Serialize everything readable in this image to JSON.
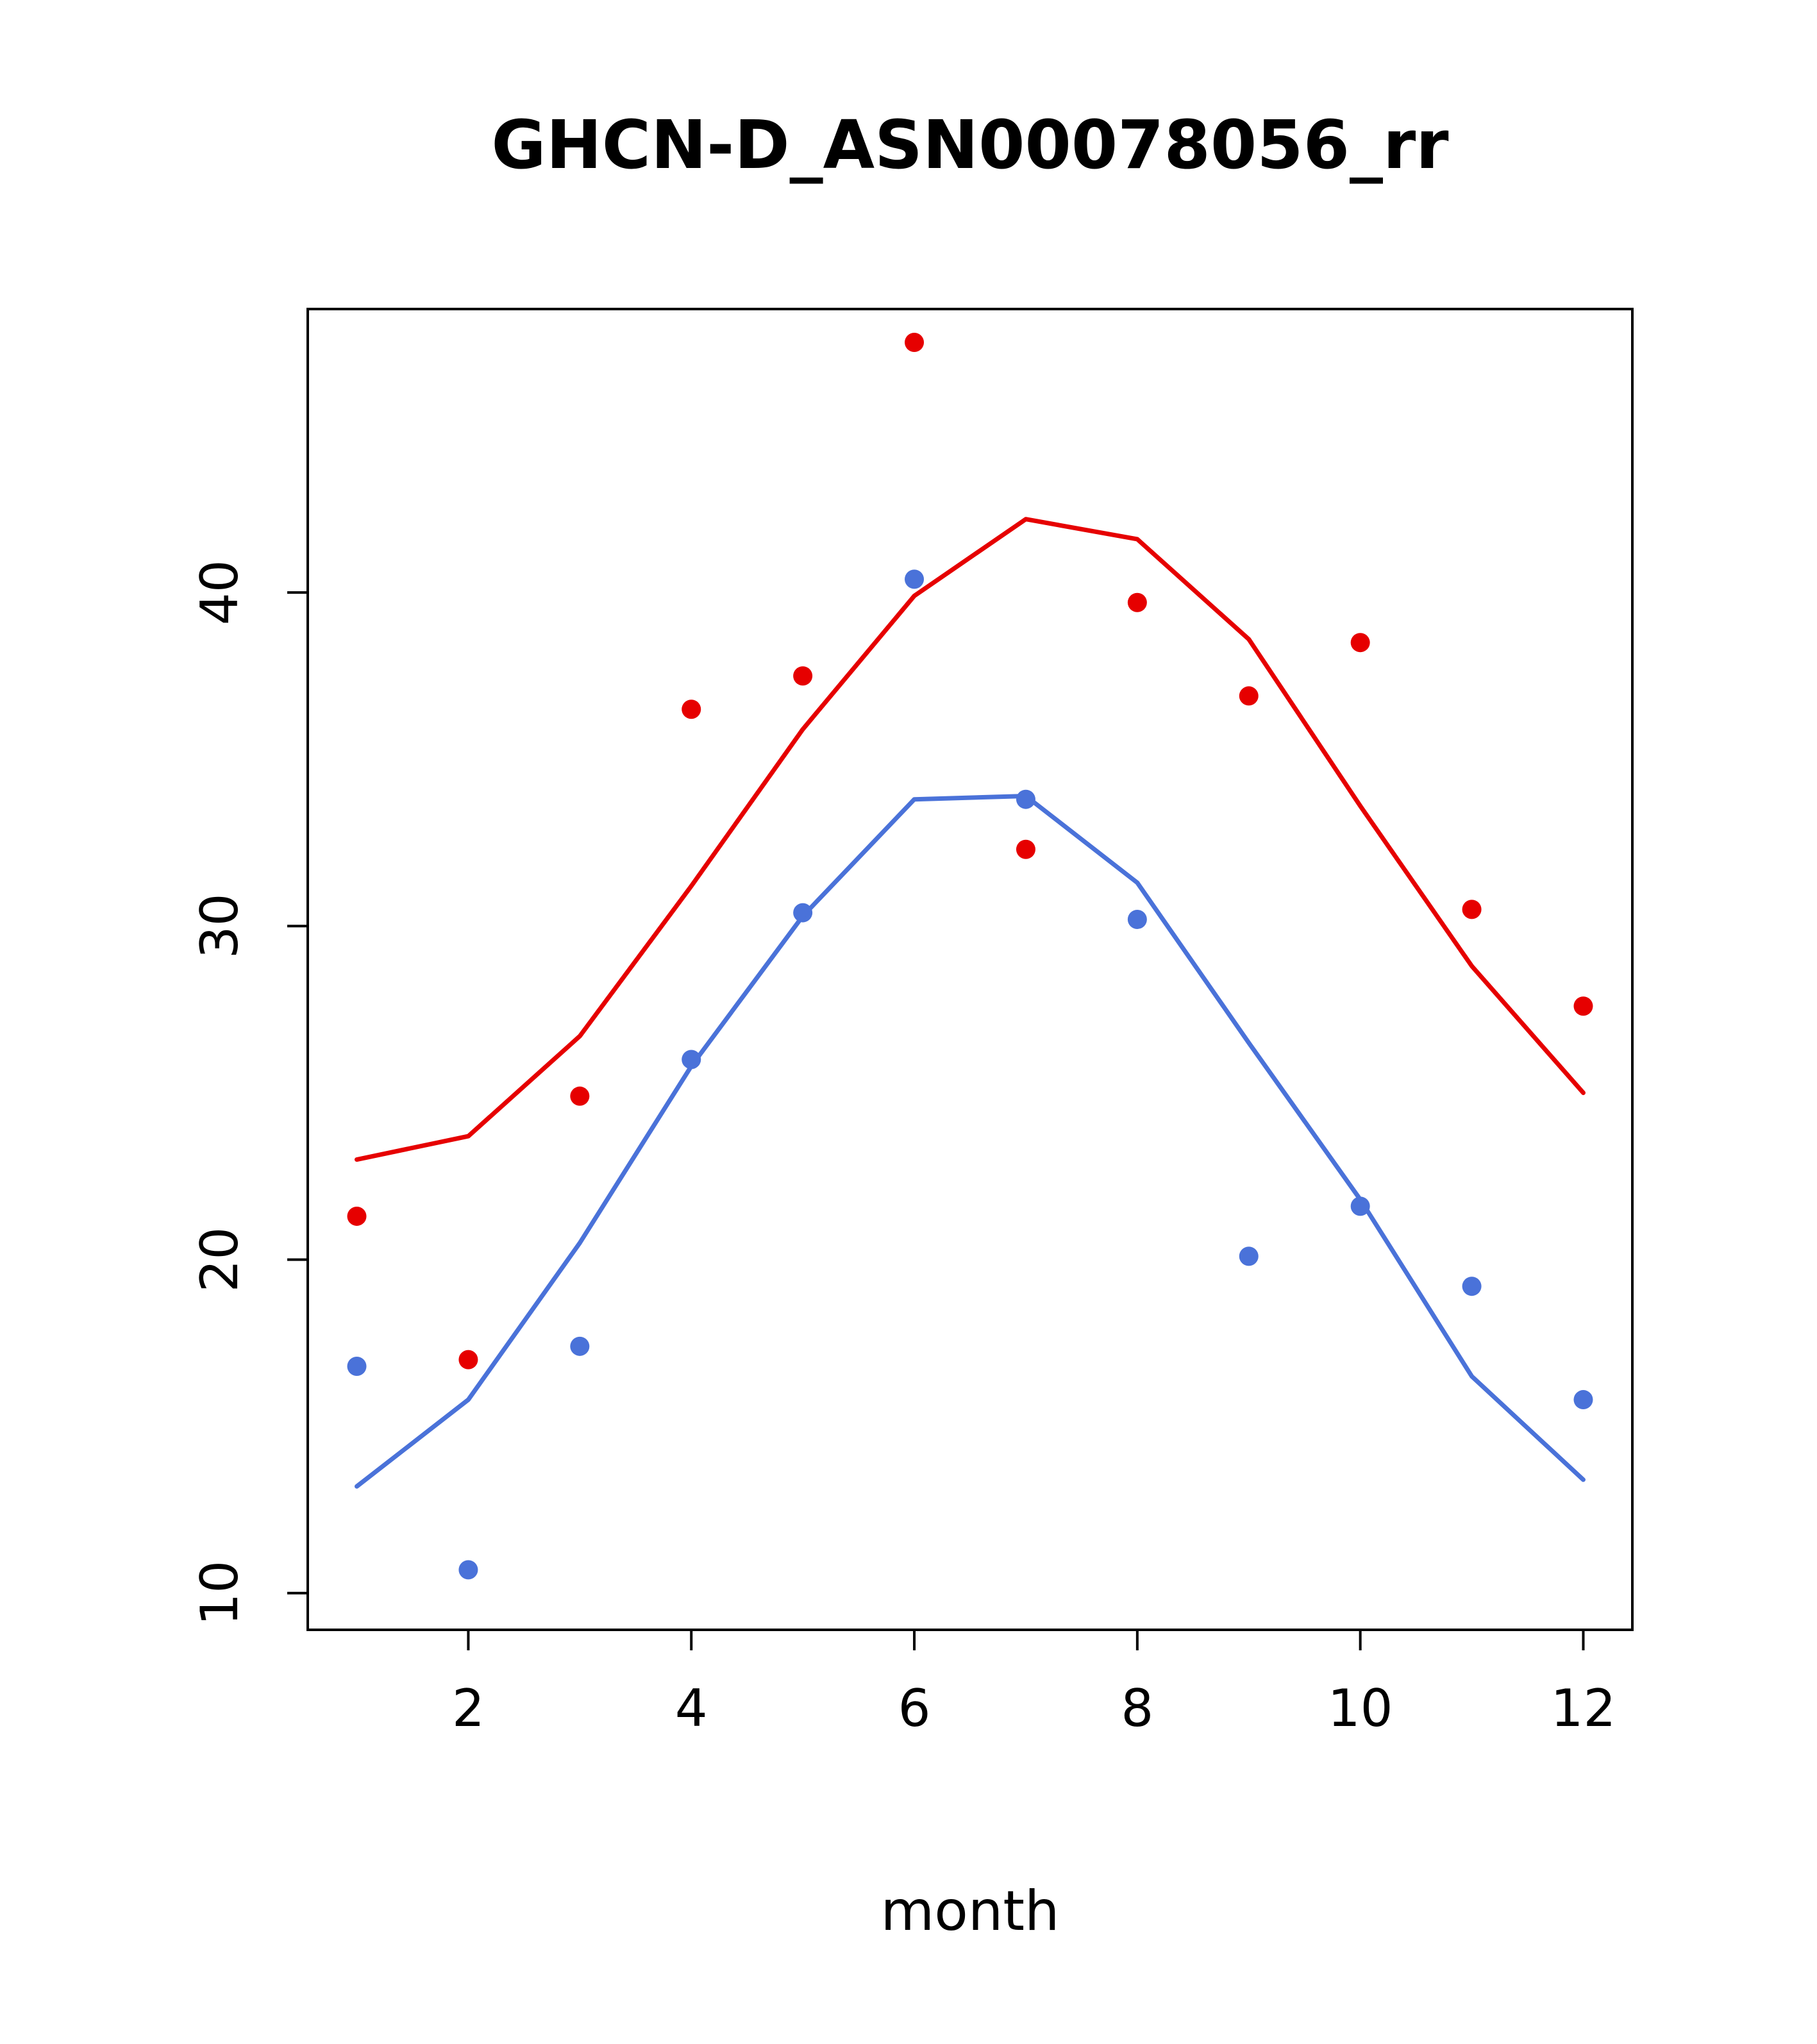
{
  "page": {
    "background": "#ffffff"
  },
  "chart_data": {
    "type": "line",
    "title": "GHCN-D_ASN00078056_rr",
    "xlabel": "month",
    "ylabel": "",
    "xlim": [
      0.56,
      12.44
    ],
    "ylim": [
      8.9,
      48.5
    ],
    "x_ticks": [
      2,
      4,
      6,
      8,
      10,
      12
    ],
    "y_ticks": [
      10,
      20,
      30,
      40
    ],
    "grid": false,
    "legend": "none",
    "x": [
      1,
      2,
      3,
      4,
      5,
      6,
      7,
      8,
      9,
      10,
      11,
      12
    ],
    "colors": {
      "red": "#e60000",
      "blue": "#4a72d9",
      "axis": "#000000"
    },
    "series": [
      {
        "name": "red-scatter",
        "type": "points",
        "color": "#e60000",
        "values": [
          21.3,
          17.0,
          24.9,
          36.5,
          37.5,
          47.5,
          32.3,
          39.7,
          36.9,
          38.5,
          30.5,
          27.6
        ]
      },
      {
        "name": "red-line",
        "type": "line",
        "color": "#e60000",
        "values": [
          23.0,
          23.7,
          26.7,
          31.2,
          35.9,
          39.9,
          42.2,
          41.6,
          38.6,
          33.6,
          28.8,
          25.0
        ]
      },
      {
        "name": "blue-scatter",
        "type": "points",
        "color": "#4a72d9",
        "values": [
          16.8,
          10.7,
          17.4,
          26.0,
          30.4,
          40.4,
          33.8,
          30.2,
          20.1,
          21.6,
          19.2,
          15.8
        ]
      },
      {
        "name": "blue-line",
        "type": "line",
        "color": "#4a72d9",
        "values": [
          13.2,
          15.8,
          20.5,
          25.8,
          30.3,
          33.8,
          33.9,
          31.3,
          26.5,
          21.8,
          16.5,
          13.4
        ]
      }
    ]
  }
}
